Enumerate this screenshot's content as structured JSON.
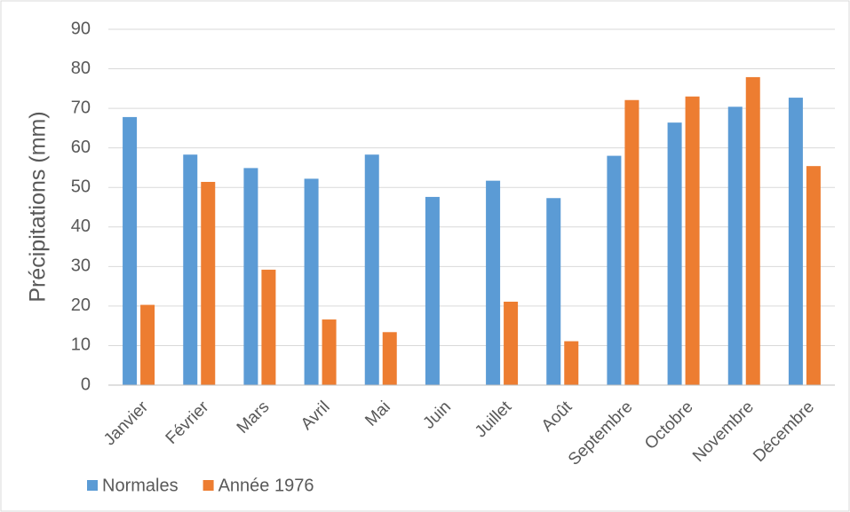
{
  "chart_data": {
    "type": "bar",
    "y_label": "Précipitations (mm)",
    "categories": [
      "Janvier",
      "Février",
      "Mars",
      "Avril",
      "Mai",
      "Juin",
      "Juillet",
      "Août",
      "Septembre",
      "Octobre",
      "Novembre",
      "Décembre"
    ],
    "series": [
      {
        "name": "Normales",
        "color": "#5b9bd5",
        "values": [
          67.8,
          58.3,
          54.9,
          52.2,
          58.3,
          47.6,
          51.7,
          47.3,
          58.0,
          66.4,
          70.4,
          72.7
        ]
      },
      {
        "name": "Année 1976",
        "color": "#ed7d31",
        "values": [
          20.3,
          51.4,
          29.2,
          16.6,
          13.4,
          0,
          21.1,
          11.1,
          72.1,
          73.0,
          77.9,
          55.4
        ]
      }
    ],
    "ylim": [
      0,
      90
    ],
    "yticks": [
      0,
      10,
      20,
      30,
      40,
      50,
      60,
      70,
      80,
      90
    ],
    "grid": true,
    "legend": "bottom-left"
  }
}
